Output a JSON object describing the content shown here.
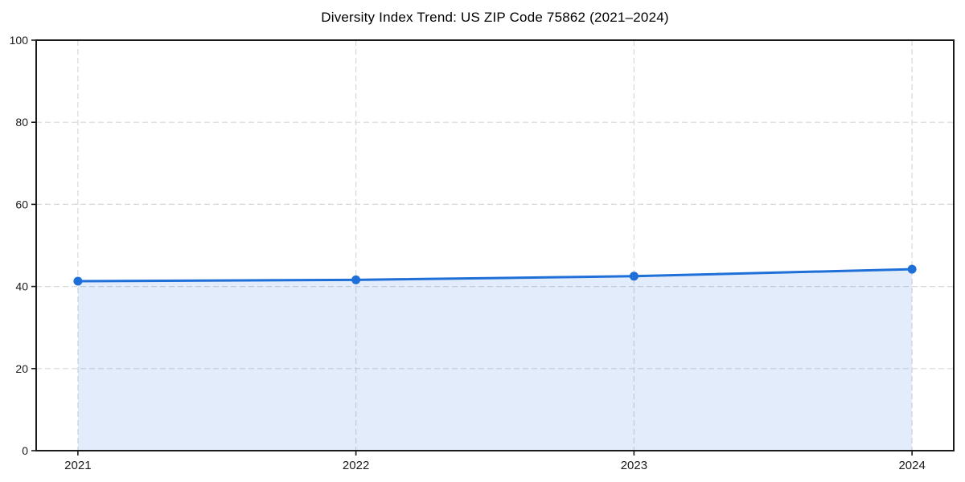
{
  "chart_data": {
    "type": "line",
    "title": "Diversity Index Trend: US ZIP Code 75862 (2021–2024)",
    "x": [
      2021,
      2022,
      2023,
      2024
    ],
    "xtick_labels": [
      "2021",
      "2022",
      "2023",
      "2024"
    ],
    "series": [
      {
        "name": "Diversity Index",
        "values": [
          41.3,
          41.6,
          42.5,
          44.2
        ]
      }
    ],
    "xlabel": "",
    "ylabel": "",
    "yticks": [
      0,
      20,
      40,
      60,
      80,
      100
    ],
    "ylim": [
      0,
      100
    ],
    "xlim": [
      2020.85,
      2024.15
    ],
    "grid": true,
    "grid_style": "dashed",
    "legend_position": "none",
    "area_fill": true,
    "fill_opacity": 0.13,
    "colors": {
      "line": "#1f6fd9",
      "marker": "#1f6fd9",
      "fill_base": "#1f6fd9",
      "grid": "#d8d8d8",
      "spine": "#1a1a1a",
      "tick_text": "#1a1a1a",
      "title_text": "#000000",
      "background": "#ffffff"
    }
  }
}
